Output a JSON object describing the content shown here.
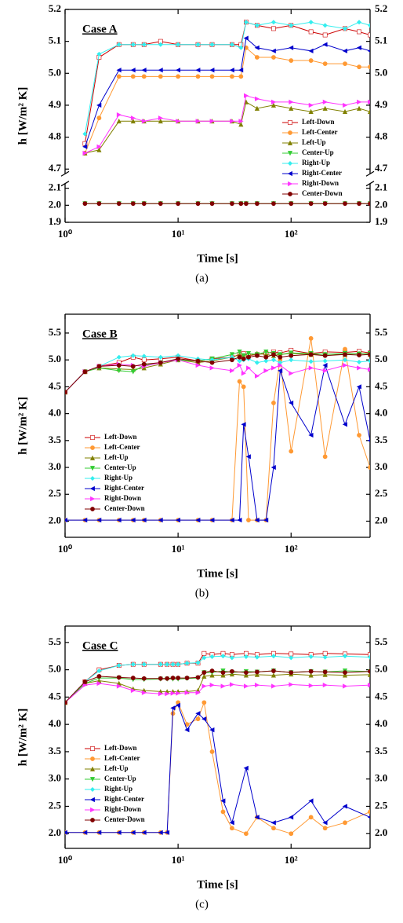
{
  "chart_data": [
    {
      "type": "line",
      "annotation": "Case A",
      "caption": "(a)",
      "x_label": "Time [s]",
      "y_label": "h [W/m² K]",
      "xscale": "log",
      "xlim": [
        1,
        500
      ],
      "xticks": [
        {
          "value": 1,
          "label": "10⁰"
        },
        {
          "value": 10,
          "label": "10¹"
        },
        {
          "value": 100,
          "label": "10²"
        }
      ],
      "ylim": [
        1.9,
        5.2
      ],
      "y_break": [
        2.1,
        4.7
      ],
      "yticks": [
        1.9,
        {
          "value": 2,
          "label": "2.0"
        },
        2.1,
        4.7,
        4.8,
        4.9,
        {
          "value": 5,
          "label": "5.0"
        },
        5.1,
        5.2
      ],
      "legend": "lower right",
      "x": [
        1.5,
        2,
        3,
        4,
        5,
        7,
        10,
        15,
        20,
        30,
        36,
        40,
        50,
        70,
        100,
        150,
        200,
        300,
        400,
        500
      ],
      "series": [
        {
          "name": "Left-Down",
          "color": "#cc0000",
          "marker": "square",
          "values": [
            4.78,
            5.05,
            5.09,
            5.09,
            5.09,
            5.1,
            5.09,
            5.09,
            5.09,
            5.09,
            5.09,
            5.16,
            5.15,
            5.14,
            5.15,
            5.13,
            5.12,
            5.14,
            5.13,
            5.12
          ]
        },
        {
          "name": "Left-Center",
          "color": "#ff9933",
          "marker": "circle",
          "values": [
            4.75,
            4.86,
            4.99,
            4.99,
            4.99,
            4.99,
            4.99,
            4.99,
            4.99,
            4.99,
            4.99,
            5.08,
            5.05,
            5.05,
            5.04,
            5.04,
            5.03,
            5.03,
            5.02,
            5.02
          ]
        },
        {
          "name": "Left-Up",
          "color": "#808000",
          "marker": "triangle",
          "values": [
            4.75,
            4.76,
            4.85,
            4.85,
            4.85,
            4.85,
            4.85,
            4.85,
            4.85,
            4.85,
            4.84,
            4.91,
            4.89,
            4.9,
            4.89,
            4.88,
            4.89,
            4.88,
            4.89,
            4.88
          ]
        },
        {
          "name": "Center-Up",
          "color": "#33cc33",
          "marker": "down-triangle",
          "values": [
            2.01,
            2.01,
            2.01,
            2.01,
            2.01,
            2.01,
            2.01,
            2.01,
            2.01,
            2.01,
            2.01,
            2.01,
            2.01,
            2.01,
            2.01,
            2.01,
            2.01,
            2.01,
            2.01,
            2.01
          ]
        },
        {
          "name": "Right-Up",
          "color": "#33eeee",
          "marker": "diamond",
          "values": [
            4.81,
            5.06,
            5.09,
            5.09,
            5.09,
            5.09,
            5.09,
            5.09,
            5.09,
            5.09,
            5.08,
            5.16,
            5.15,
            5.16,
            5.15,
            5.16,
            5.15,
            5.14,
            5.16,
            5.15
          ]
        },
        {
          "name": "Right-Center",
          "color": "#0000cc",
          "marker": "left-triangle",
          "values": [
            4.77,
            4.9,
            5.01,
            5.01,
            5.01,
            5.01,
            5.01,
            5.01,
            5.01,
            5.01,
            5.01,
            5.11,
            5.08,
            5.07,
            5.08,
            5.07,
            5.09,
            5.07,
            5.08,
            5.07
          ]
        },
        {
          "name": "Right-Down",
          "color": "#ff33ff",
          "marker": "right-triangle",
          "values": [
            4.75,
            4.77,
            4.87,
            4.86,
            4.85,
            4.86,
            4.85,
            4.85,
            4.85,
            4.85,
            4.85,
            4.93,
            4.92,
            4.91,
            4.91,
            4.9,
            4.91,
            4.9,
            4.91,
            4.91
          ]
        },
        {
          "name": "Center-Down",
          "color": "#800000",
          "marker": "circle",
          "values": [
            2.01,
            2.01,
            2.01,
            2.01,
            2.01,
            2.01,
            2.01,
            2.01,
            2.01,
            2.01,
            2.01,
            2.01,
            2.01,
            2.01,
            2.01,
            2.01,
            2.01,
            2.01,
            2.01,
            2.01
          ]
        }
      ]
    },
    {
      "type": "line",
      "annotation": "Case B",
      "caption": "(b)",
      "x_label": "Time [s]",
      "y_label": "h [W/m² K]",
      "xscale": "log",
      "xlim": [
        1,
        500
      ],
      "xticks": [
        {
          "value": 1,
          "label": "10⁰"
        },
        {
          "value": 10,
          "label": "10¹"
        },
        {
          "value": 100,
          "label": "10²"
        }
      ],
      "ylim": [
        1.7,
        5.85
      ],
      "yticks": [
        {
          "value": 2,
          "label": "2.0"
        },
        2.5,
        {
          "value": 3,
          "label": "3.0"
        },
        3.5,
        {
          "value": 4,
          "label": "4.0"
        },
        4.5,
        {
          "value": 5,
          "label": "5.0"
        },
        5.5
      ],
      "legend": "lower left",
      "x": [
        1,
        1.5,
        2,
        3,
        4,
        5,
        7,
        10,
        15,
        20,
        30,
        35,
        38,
        42,
        50,
        60,
        70,
        80,
        100,
        150,
        200,
        300,
        400,
        500
      ],
      "series": [
        {
          "name": "Left-Down",
          "color": "#cc0000",
          "marker": "square",
          "values": [
            4.4,
            4.78,
            4.88,
            4.95,
            5.05,
            5.0,
            5.02,
            5.05,
            4.98,
            5.02,
            5.05,
            5.1,
            5.12,
            5.08,
            5.1,
            5.12,
            5.15,
            5.13,
            5.18,
            5.12,
            5.15,
            5.14,
            5.16,
            5.13
          ]
        },
        {
          "name": "Left-Center",
          "color": "#ff9933",
          "marker": "circle",
          "values": [
            2.02,
            2.02,
            2.02,
            2.02,
            2.02,
            2.02,
            2.02,
            2.02,
            2.02,
            2.02,
            2.02,
            4.6,
            4.5,
            2.02,
            2.02,
            2.02,
            4.2,
            5.0,
            3.3,
            5.4,
            3.2,
            5.2,
            3.6,
            3.0
          ]
        },
        {
          "name": "Left-Up",
          "color": "#808000",
          "marker": "triangle",
          "values": [
            4.4,
            4.78,
            4.85,
            4.83,
            4.82,
            4.85,
            4.92,
            5.0,
            4.95,
            4.98,
            5.05,
            5.1,
            5.05,
            5.08,
            5.12,
            5.1,
            5.08,
            5.1,
            5.12,
            5.1,
            5.11,
            5.1,
            5.12,
            5.1
          ]
        },
        {
          "name": "Center-Up",
          "color": "#33cc33",
          "marker": "down-triangle",
          "values": [
            4.4,
            4.78,
            4.85,
            4.8,
            4.78,
            4.9,
            4.95,
            5.0,
            4.98,
            5.02,
            5.1,
            5.15,
            5.08,
            5.12,
            5.1,
            5.15,
            5.12,
            5.1,
            5.13,
            5.12,
            5.1,
            5.12,
            5.11,
            5.12
          ]
        },
        {
          "name": "Right-Up",
          "color": "#33eeee",
          "marker": "diamond",
          "values": [
            4.4,
            4.78,
            4.88,
            5.05,
            5.08,
            5.07,
            5.05,
            5.08,
            5.02,
            5.0,
            5.05,
            4.98,
            5.0,
            5.02,
            4.95,
            4.98,
            5.0,
            4.95,
            5.0,
            4.97,
            4.98,
            5.0,
            4.96,
            4.98
          ]
        },
        {
          "name": "Right-Center",
          "color": "#0000cc",
          "marker": "left-triangle",
          "values": [
            2.02,
            2.02,
            2.02,
            2.02,
            2.02,
            2.02,
            2.02,
            2.02,
            2.02,
            2.02,
            2.02,
            2.02,
            3.8,
            3.2,
            2.02,
            2.02,
            3.0,
            4.8,
            4.2,
            3.6,
            4.9,
            3.8,
            4.5,
            3.5
          ]
        },
        {
          "name": "Right-Down",
          "color": "#ff33ff",
          "marker": "right-triangle",
          "values": [
            4.4,
            4.78,
            4.88,
            4.92,
            4.9,
            4.88,
            4.95,
            5.0,
            4.9,
            4.85,
            4.8,
            4.9,
            4.75,
            4.85,
            4.7,
            4.8,
            4.85,
            4.9,
            4.75,
            4.85,
            4.8,
            4.9,
            4.85,
            4.82
          ]
        },
        {
          "name": "Center-Down",
          "color": "#800000",
          "marker": "circle",
          "values": [
            4.4,
            4.78,
            4.88,
            4.9,
            4.88,
            4.92,
            4.95,
            5.02,
            4.98,
            4.95,
            5.0,
            5.05,
            5.02,
            5.05,
            5.08,
            5.05,
            5.1,
            5.05,
            5.08,
            5.1,
            5.08,
            5.1,
            5.09,
            5.1
          ]
        }
      ]
    },
    {
      "type": "line",
      "annotation": "Case C",
      "caption": "(c)",
      "x_label": "Time [s]",
      "y_label": "h [W/m² K]",
      "xscale": "log",
      "xlim": [
        1,
        500
      ],
      "xticks": [
        {
          "value": 1,
          "label": "10⁰"
        },
        {
          "value": 10,
          "label": "10¹"
        },
        {
          "value": 100,
          "label": "10²"
        }
      ],
      "ylim": [
        1.73,
        5.8
      ],
      "yticks": [
        {
          "value": 2,
          "label": "2.0"
        },
        2.5,
        {
          "value": 3,
          "label": "3.0"
        },
        3.5,
        {
          "value": 4,
          "label": "4.0"
        },
        4.5,
        {
          "value": 5,
          "label": "5.0"
        },
        5.5
      ],
      "legend": "lower left",
      "x": [
        1,
        1.5,
        2,
        3,
        4,
        5,
        7,
        8,
        9,
        10,
        12,
        15,
        17,
        20,
        25,
        30,
        40,
        50,
        70,
        100,
        150,
        200,
        300,
        500
      ],
      "series": [
        {
          "name": "Left-Down",
          "color": "#cc0000",
          "marker": "square",
          "values": [
            4.4,
            4.78,
            5.0,
            5.08,
            5.1,
            5.1,
            5.1,
            5.1,
            5.1,
            5.1,
            5.12,
            5.12,
            5.3,
            5.28,
            5.3,
            5.28,
            5.3,
            5.28,
            5.3,
            5.29,
            5.28,
            5.3,
            5.29,
            5.28
          ]
        },
        {
          "name": "Left-Center",
          "color": "#ff9933",
          "marker": "circle",
          "values": [
            2.02,
            2.02,
            2.02,
            2.02,
            2.02,
            2.02,
            2.02,
            2.02,
            4.2,
            4.4,
            4.0,
            4.1,
            4.4,
            3.5,
            2.4,
            2.1,
            2.0,
            2.3,
            2.1,
            2.0,
            2.3,
            2.1,
            2.2,
            2.4
          ]
        },
        {
          "name": "Left-Up",
          "color": "#808000",
          "marker": "triangle",
          "values": [
            4.4,
            4.75,
            4.8,
            4.75,
            4.65,
            4.62,
            4.6,
            4.6,
            4.6,
            4.6,
            4.6,
            4.62,
            4.88,
            4.9,
            4.9,
            4.92,
            4.9,
            4.91,
            4.9,
            4.92,
            4.9,
            4.91,
            4.9,
            4.91
          ]
        },
        {
          "name": "Center-Up",
          "color": "#33cc33",
          "marker": "down-triangle",
          "values": [
            4.4,
            4.75,
            4.85,
            4.85,
            4.82,
            4.82,
            4.83,
            4.83,
            4.83,
            4.83,
            4.84,
            4.85,
            4.95,
            4.95,
            4.98,
            4.95,
            4.97,
            4.96,
            4.98,
            4.95,
            4.97,
            4.96,
            4.98,
            4.97
          ]
        },
        {
          "name": "Right-Up",
          "color": "#33eeee",
          "marker": "diamond",
          "values": [
            4.4,
            4.78,
            4.98,
            5.08,
            5.1,
            5.1,
            5.1,
            5.1,
            5.1,
            5.1,
            5.12,
            5.13,
            5.22,
            5.24,
            5.25,
            5.22,
            5.24,
            5.23,
            5.25,
            5.22,
            5.24,
            5.23,
            5.25,
            5.23
          ]
        },
        {
          "name": "Right-Center",
          "color": "#0000cc",
          "marker": "left-triangle",
          "values": [
            2.02,
            2.02,
            2.02,
            2.02,
            2.02,
            2.02,
            2.02,
            2.02,
            4.3,
            4.35,
            3.9,
            4.2,
            4.1,
            3.9,
            2.6,
            2.2,
            3.2,
            2.3,
            2.2,
            2.3,
            2.6,
            2.2,
            2.5,
            2.3
          ]
        },
        {
          "name": "Right-Down",
          "color": "#ff33ff",
          "marker": "right-triangle",
          "values": [
            4.4,
            4.72,
            4.75,
            4.7,
            4.62,
            4.58,
            4.56,
            4.56,
            4.57,
            4.57,
            4.58,
            4.58,
            4.7,
            4.72,
            4.7,
            4.73,
            4.7,
            4.72,
            4.7,
            4.73,
            4.71,
            4.72,
            4.7,
            4.72
          ]
        },
        {
          "name": "Center-Down",
          "color": "#800000",
          "marker": "circle",
          "values": [
            4.4,
            4.78,
            4.88,
            4.86,
            4.85,
            4.84,
            4.84,
            4.84,
            4.85,
            4.85,
            4.85,
            4.86,
            4.95,
            4.98,
            4.95,
            4.97,
            4.95,
            4.96,
            4.98,
            4.95,
            4.97,
            4.96,
            4.95,
            4.97
          ]
        }
      ]
    }
  ]
}
